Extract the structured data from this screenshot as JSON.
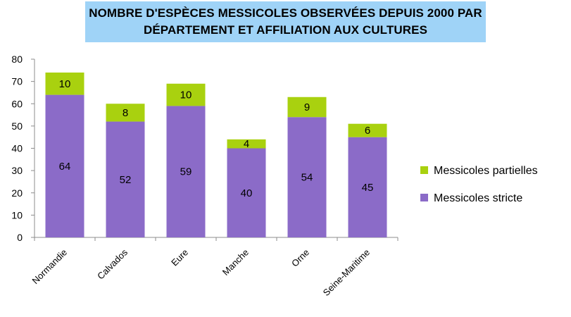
{
  "chart_data": {
    "type": "bar",
    "stacked": true,
    "title": {
      "line1": "NOMBRE D'ESPÈCES MESSICOLES OBSERVÉES DEPUIS 2000 PAR",
      "line2": "DÉPARTEMENT ET AFFILIATION AUX CULTURES"
    },
    "xlabel": "",
    "ylabel": "",
    "categories": [
      "Normandie",
      "Calvados",
      "Eure",
      "Manche",
      "Orne",
      "Seine-Maritime"
    ],
    "series": [
      {
        "name": "Messicoles stricte",
        "values": [
          64,
          52,
          59,
          40,
          54,
          45
        ],
        "color": "#8b6bc8"
      },
      {
        "name": "Messicoles partielles",
        "values": [
          10,
          8,
          10,
          4,
          9,
          6
        ],
        "color": "#a9d10f"
      }
    ],
    "ylim": [
      0,
      80
    ],
    "yticks": [
      0,
      10,
      20,
      30,
      40,
      50,
      60,
      70,
      80
    ],
    "grid": false,
    "legend": "right",
    "legend_order": [
      1,
      0
    ],
    "title_background": "#9fd3f7",
    "axis_color": "#8c8c8c"
  }
}
